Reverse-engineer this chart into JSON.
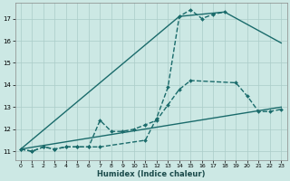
{
  "xlabel": "Humidex (Indice chaleur)",
  "bg_color": "#cce8e4",
  "grid_color": "#aaccc8",
  "line_color": "#1a6b6b",
  "xlim": [
    -0.5,
    23.5
  ],
  "ylim": [
    10.6,
    17.7
  ],
  "yticks": [
    11,
    12,
    13,
    14,
    15,
    16,
    17
  ],
  "xticks": [
    0,
    1,
    2,
    3,
    4,
    5,
    6,
    7,
    8,
    9,
    10,
    11,
    12,
    13,
    14,
    15,
    16,
    17,
    18,
    19,
    20,
    21,
    22,
    23
  ],
  "series": [
    {
      "x": [
        0,
        1,
        2,
        3,
        4,
        5,
        6,
        7,
        11,
        12,
        13,
        14,
        15,
        16,
        17,
        18
      ],
      "y": [
        11.1,
        11.0,
        11.2,
        11.1,
        11.2,
        11.2,
        11.2,
        11.2,
        11.5,
        12.5,
        13.9,
        17.1,
        17.4,
        17.0,
        17.2,
        17.3
      ],
      "marker": "D",
      "markersize": 2.0,
      "linewidth": 1.0,
      "linestyle": "--"
    },
    {
      "x": [
        0,
        14,
        18,
        23
      ],
      "y": [
        11.1,
        17.1,
        17.3,
        15.9
      ],
      "marker": null,
      "markersize": 0,
      "linewidth": 1.0,
      "linestyle": "-"
    },
    {
      "x": [
        0,
        1,
        2,
        3,
        4,
        5,
        6,
        7,
        8,
        9,
        10,
        11,
        12,
        13,
        14,
        15,
        19,
        20,
        21,
        22,
        23
      ],
      "y": [
        11.1,
        11.0,
        11.2,
        11.1,
        11.2,
        11.2,
        11.2,
        12.4,
        11.9,
        11.9,
        12.0,
        12.2,
        12.4,
        13.1,
        13.8,
        14.2,
        14.1,
        13.5,
        12.8,
        12.8,
        12.9
      ],
      "marker": "D",
      "markersize": 2.0,
      "linewidth": 1.0,
      "linestyle": "--"
    },
    {
      "x": [
        0,
        23
      ],
      "y": [
        11.1,
        13.0
      ],
      "marker": null,
      "markersize": 0,
      "linewidth": 1.0,
      "linestyle": "-"
    }
  ]
}
